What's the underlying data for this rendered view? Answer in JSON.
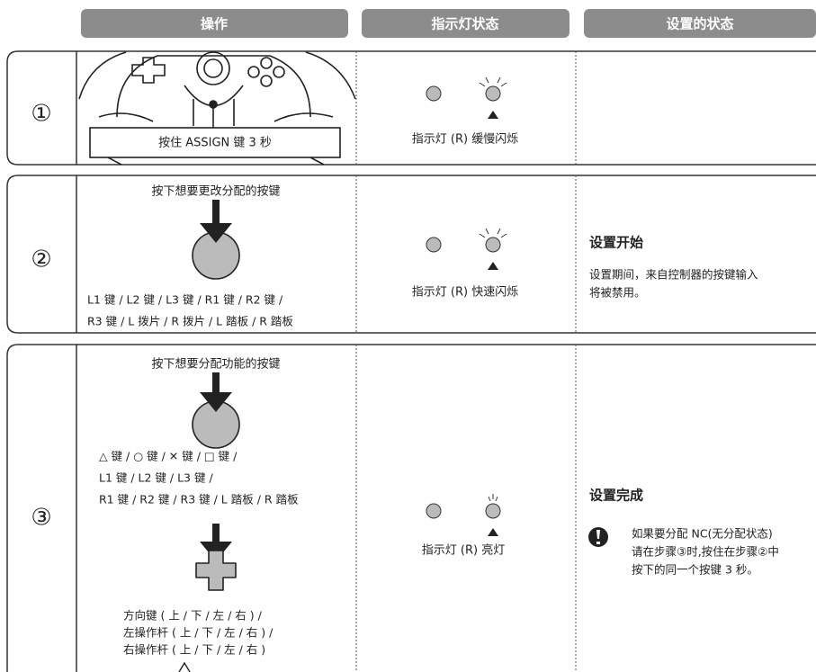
{
  "header": {
    "columns": [
      "操作",
      "指示灯状态",
      "设置的状态"
    ]
  },
  "steps": [
    {
      "number": "①",
      "operation": {
        "button_label": "按住 ASSIGN 键 3 秒"
      },
      "indicator": "指示灯 (R) 缓慢闪烁"
    },
    {
      "number": "②",
      "operation": {
        "instruction": "按下想要更改分配的按键",
        "buttons": [
          "L1 键 / L2 键 / L3 键 / R1 键 / R2 键 /",
          "R3 键 / L 拨片 / R 拨片 / L 踏板 / R 踏板"
        ]
      },
      "indicator": "指示灯 (R) 快速闪烁",
      "state": {
        "title": "设置开始",
        "lines": [
          "设置期间，来自控制器的按键输入",
          "将被禁用。"
        ]
      }
    },
    {
      "number": "③",
      "operation": {
        "instruction": "按下想要分配功能的按键",
        "buttons": [
          "△ 键 / ○ 键 / ✕ 键 / □ 键 /",
          "L1 键 / L2 键 / L3 键 /",
          "R1 键 / R2 键 / R3 键 / L 踏板 / R 踏板"
        ],
        "directions": [
          "方向键 ( 上 / 下 / 左 / 右 ) /",
          "左操作杆 ( 上 / 下 / 左 / 右 ) /",
          "右操作杆 ( 上 / 下 / 左 / 右 )"
        ]
      },
      "indicator": "指示灯 (R) 亮灯",
      "state": {
        "title": "设置完成",
        "note": [
          "如果要分配 NC(无分配状态)",
          "请在步骤③时,按住在步骤②中",
          "按下的同一个按键 3 秒。"
        ]
      }
    }
  ]
}
